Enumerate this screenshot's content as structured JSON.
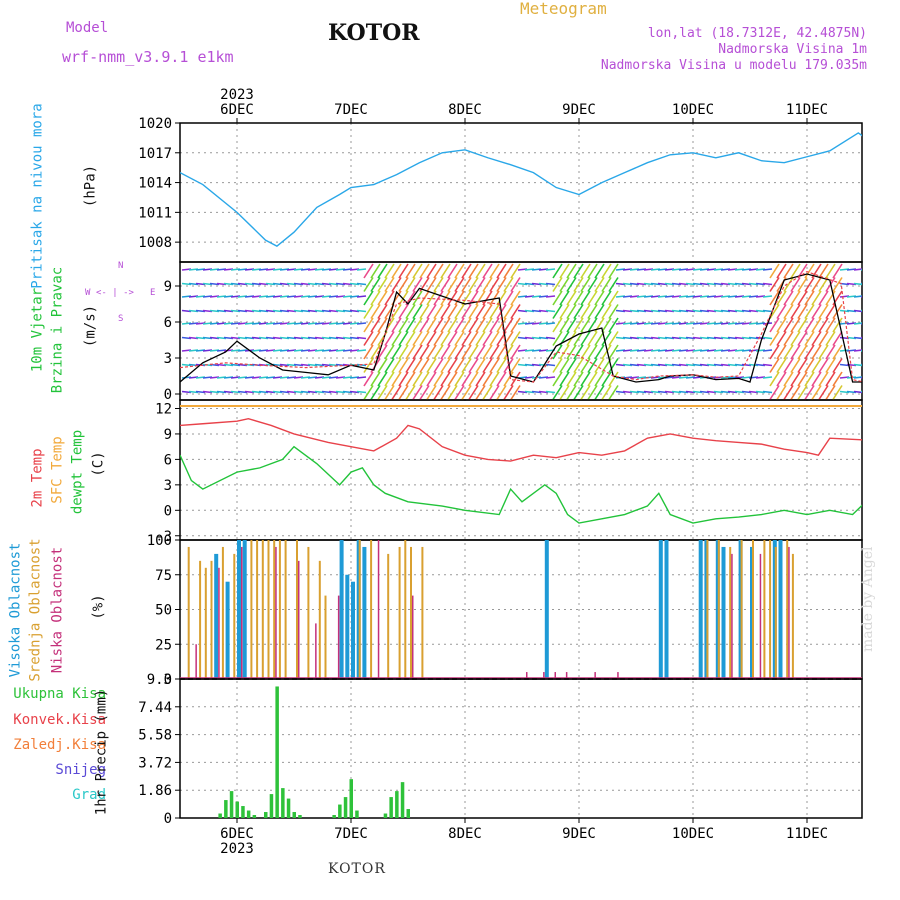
{
  "header": {
    "model_label": "Model",
    "model_run": "wrf-nmm_v3.9.1  e1km",
    "city": "KOTOR",
    "meteogram": "Meteogram",
    "lonlat": "lon,lat (18.7312E, 42.4875N)",
    "altitude": "Nadmorska Visina 1m",
    "model_altitude": "Nadmorska Visina u modelu 179.035m"
  },
  "footer": {
    "city": "KOTOR",
    "watermark": "made by Angel"
  },
  "time_axis": {
    "year": "2023",
    "labels": [
      "6DEC",
      "7DEC",
      "8DEC",
      "9DEC",
      "10DEC",
      "11DEC"
    ]
  },
  "colors": {
    "pressure": "#2aa7e8",
    "t2m": "#e8424a",
    "sfc": "#f2a93b",
    "dewpoint": "#22c33a",
    "cloud_high": "#1e9ad6",
    "cloud_mid": "#d9a030",
    "cloud_low": "#c4307a",
    "precip": "#2ec23a",
    "wind_label": "#22c33a",
    "compass": "#b64fd6"
  },
  "panels": {
    "pressure": {
      "label": "Pritisak na nivou mora",
      "unit": "(hPa)"
    },
    "wind": {
      "label": [
        "10m Vjetar",
        "Brzina i Pravac"
      ],
      "unit": "(m/s)",
      "compass": {
        "n": "N",
        "s": "S",
        "e": "E",
        "w": "W"
      }
    },
    "temp": {
      "labels": [
        "2m Temp",
        "SFC Temp",
        "dewpt Temp"
      ],
      "unit": "(C)"
    },
    "cloud": {
      "labels": [
        "Visoka Oblacnost",
        "Srednja Oblacnost",
        "Niska Oblacnost"
      ],
      "unit": "(%)"
    },
    "precip": {
      "labels": [
        "Ukupna Kisa",
        "Konvek.Kisa",
        "Zaledj.Kisa",
        "Snijeg",
        "Grad"
      ],
      "unit": "1hr Precip (mm)",
      "label_colors": [
        "#2ec23a",
        "#e8424a",
        "#f27f3a",
        "#5a4ad6",
        "#2ac8c8"
      ]
    }
  },
  "chart_data": [
    {
      "type": "line",
      "title": "Pritisak na nivou mora",
      "ylabel": "(hPa)",
      "yticks": [
        "1008",
        "1011",
        "1014",
        "1017",
        "1020"
      ],
      "ylim": [
        1006,
        1020
      ],
      "x_day_offset": 0,
      "series": [
        {
          "name": "Pritisak na nivou mora",
          "x": [
            -0.5,
            -0.3,
            0,
            0.25,
            0.35,
            0.5,
            0.7,
            0.9,
            1.0,
            1.2,
            1.4,
            1.6,
            1.8,
            2.0,
            2.2,
            2.4,
            2.6,
            2.8,
            3.0,
            3.2,
            3.4,
            3.6,
            3.8,
            4.0,
            4.2,
            4.4,
            4.6,
            4.8,
            5.0,
            5.2,
            5.45,
            5.5
          ],
          "y": [
            1015.0,
            1013.8,
            1011.0,
            1008.2,
            1007.6,
            1009.0,
            1011.5,
            1012.8,
            1013.5,
            1013.8,
            1014.8,
            1016.0,
            1017.0,
            1017.3,
            1016.5,
            1015.8,
            1015.0,
            1013.5,
            1012.8,
            1014.0,
            1015.0,
            1016.0,
            1016.8,
            1017.0,
            1016.5,
            1017.0,
            1016.2,
            1016.0,
            1016.6,
            1017.2,
            1019.0,
            1018.6
          ]
        }
      ]
    },
    {
      "type": "line",
      "title": "10m Vjetar Brzina i Pravac",
      "ylabel": "(m/s)",
      "yticks": [
        "0",
        "3",
        "6",
        "9"
      ],
      "ylim": [
        -0.5,
        11
      ],
      "series": [
        {
          "name": "speed",
          "x": [
            -0.5,
            -0.3,
            -0.1,
            0,
            0.2,
            0.4,
            0.6,
            0.8,
            1.0,
            1.2,
            1.3,
            1.4,
            1.5,
            1.6,
            2.0,
            2.3,
            2.4,
            2.6,
            2.8,
            3.0,
            3.2,
            3.3,
            3.5,
            3.7,
            3.8,
            4.0,
            4.2,
            4.4,
            4.5,
            4.6,
            4.8,
            5.0,
            5.2,
            5.4,
            5.5
          ],
          "y": [
            1.0,
            2.6,
            3.5,
            4.4,
            3.0,
            2.0,
            1.8,
            1.6,
            2.4,
            2.0,
            5.0,
            8.5,
            7.5,
            8.8,
            7.5,
            8.0,
            1.5,
            1.0,
            4.0,
            5.0,
            5.5,
            1.5,
            1.0,
            1.2,
            1.5,
            1.6,
            1.2,
            1.3,
            1.0,
            4.5,
            9.5,
            10.0,
            9.5,
            1.0,
            1.0
          ]
        },
        {
          "name": "gust",
          "x": [
            -0.5,
            -0.1,
            0.2,
            0.6,
            1.0,
            1.2,
            1.3,
            1.4,
            1.6,
            2.0,
            2.3,
            2.4,
            2.6,
            2.8,
            3.0,
            3.3,
            3.5,
            3.7,
            4.0,
            4.2,
            4.4,
            4.6,
            4.8,
            5.0,
            5.3,
            5.4,
            5.5
          ],
          "y": [
            2.2,
            2.6,
            2.4,
            2.2,
            2.4,
            2.5,
            5.0,
            7.5,
            8.0,
            7.8,
            7.5,
            1.2,
            1.0,
            3.5,
            3.2,
            1.5,
            1.2,
            1.5,
            1.6,
            1.4,
            1.5,
            5.0,
            9.0,
            10.2,
            9.2,
            1.2,
            1.0
          ]
        }
      ]
    },
    {
      "type": "line",
      "title": "2m Temp / SFC Temp / dewpt Temp",
      "ylabel": "(C)",
      "yticks": [
        "-3",
        "0",
        "3",
        "6",
        "9",
        "12"
      ],
      "ylim": [
        -3.5,
        13
      ],
      "series": [
        {
          "name": "2m Temp",
          "x": [
            -0.5,
            -0.3,
            0,
            0.1,
            0.3,
            0.5,
            0.8,
            1.0,
            1.2,
            1.4,
            1.5,
            1.6,
            1.8,
            2.0,
            2.2,
            2.4,
            2.6,
            2.8,
            3.0,
            3.2,
            3.4,
            3.6,
            3.8,
            4.0,
            4.2,
            4.4,
            4.6,
            4.8,
            5.0,
            5.1,
            5.2,
            5.5
          ],
          "y": [
            10.0,
            10.2,
            10.5,
            10.8,
            10.0,
            9.0,
            8.0,
            7.5,
            7.0,
            8.5,
            10.0,
            9.6,
            7.5,
            6.5,
            6.0,
            5.8,
            6.5,
            6.2,
            6.8,
            6.5,
            7.0,
            8.5,
            9.0,
            8.5,
            8.2,
            8.0,
            7.8,
            7.2,
            6.8,
            6.5,
            8.5,
            8.3
          ]
        },
        {
          "name": "SFC Temp",
          "x": [
            -0.5,
            5.5
          ],
          "y": [
            12.3,
            12.3
          ]
        },
        {
          "name": "dewpt Temp",
          "x": [
            -0.5,
            -0.4,
            -0.3,
            0,
            0.2,
            0.4,
            0.5,
            0.7,
            0.9,
            1.0,
            1.1,
            1.2,
            1.3,
            1.5,
            1.8,
            2.0,
            2.3,
            2.4,
            2.5,
            2.7,
            2.8,
            2.9,
            3.0,
            3.2,
            3.4,
            3.6,
            3.7,
            3.8,
            4.0,
            4.2,
            4.4,
            4.6,
            4.8,
            5.0,
            5.2,
            5.4,
            5.5
          ],
          "y": [
            6.5,
            3.5,
            2.5,
            4.5,
            5.0,
            6.0,
            7.5,
            5.5,
            3.0,
            4.5,
            5.0,
            3.0,
            2.0,
            1.0,
            0.5,
            0.0,
            -0.5,
            2.5,
            1.0,
            3.0,
            2.0,
            -0.5,
            -1.5,
            -1.0,
            -0.5,
            0.5,
            2.0,
            -0.5,
            -1.5,
            -1.0,
            -0.8,
            -0.5,
            0.0,
            -0.5,
            0.0,
            -0.5,
            0.8
          ]
        }
      ]
    },
    {
      "type": "bar",
      "title": "Visoka / Srednja / Niska Oblacnost",
      "ylabel": "(%)",
      "yticks": [
        "0",
        "25",
        "50",
        "75",
        "100"
      ],
      "ylim": [
        0,
        100
      ],
      "series": [
        {
          "name": "Visoka Oblacnost",
          "x": [
            -0.2,
            -0.1,
            0,
            0.05,
            0.9,
            0.95,
            1.0,
            1.05,
            1.1,
            2.7,
            3.7,
            3.75,
            4.05,
            4.1,
            4.2,
            4.25,
            4.4,
            4.5,
            4.7,
            4.75
          ],
          "y": [
            90,
            70,
            100,
            100,
            100,
            75,
            70,
            100,
            95,
            100,
            100,
            100,
            100,
            100,
            100,
            95,
            100,
            95,
            100,
            100
          ]
        },
        {
          "name": "Srednja Oblacnost",
          "x": [
            -0.45,
            -0.35,
            -0.3,
            -0.25,
            -0.15,
            -0.05,
            0.1,
            0.15,
            0.2,
            0.25,
            0.3,
            0.35,
            0.4,
            0.5,
            0.6,
            0.7,
            0.75,
            1.05,
            1.15,
            1.3,
            1.4,
            1.45,
            1.5,
            1.6,
            4.1,
            4.2,
            4.3,
            4.4,
            4.5,
            4.6,
            4.65,
            4.7,
            4.8,
            4.85
          ],
          "y": [
            95,
            85,
            80,
            85,
            95,
            90,
            100,
            100,
            100,
            100,
            100,
            100,
            100,
            100,
            95,
            85,
            60,
            100,
            100,
            90,
            95,
            100,
            95,
            95,
            100,
            100,
            95,
            100,
            100,
            100,
            100,
            95,
            100,
            90
          ]
        },
        {
          "name": "Niska Oblacnost",
          "x": [
            -0.4,
            -0.2,
            0.0,
            0.3,
            0.5,
            0.65,
            0.85,
            1.2,
            1.5,
            2.5,
            2.65,
            2.75,
            2.85,
            3.1,
            3.3,
            4.3,
            4.55,
            4.8
          ],
          "y": [
            25,
            80,
            95,
            95,
            85,
            40,
            60,
            100,
            60,
            5,
            5,
            5,
            5,
            5,
            5,
            90,
            90,
            95
          ]
        }
      ]
    },
    {
      "type": "bar",
      "title": "1hr Precip",
      "ylabel": "1hr Precip (mm)",
      "yticks": [
        "0",
        "1.86",
        "3.72",
        "5.58",
        "7.44",
        "9.3"
      ],
      "ylim": [
        0,
        9.3
      ],
      "series": [
        {
          "name": "Ukupna Kisa",
          "x": [
            -0.15,
            -0.1,
            -0.05,
            0.0,
            0.05,
            0.1,
            0.15,
            0.25,
            0.3,
            0.35,
            0.4,
            0.45,
            0.5,
            0.55,
            0.85,
            0.9,
            0.95,
            1.0,
            1.05,
            1.3,
            1.35,
            1.4,
            1.45,
            1.5
          ],
          "y": [
            0.3,
            1.2,
            1.8,
            1.1,
            0.8,
            0.5,
            0.2,
            0.4,
            1.6,
            8.8,
            2.0,
            1.3,
            0.4,
            0.2,
            0.2,
            0.9,
            1.4,
            2.6,
            0.5,
            0.3,
            1.4,
            1.8,
            2.4,
            0.6
          ]
        }
      ]
    }
  ]
}
